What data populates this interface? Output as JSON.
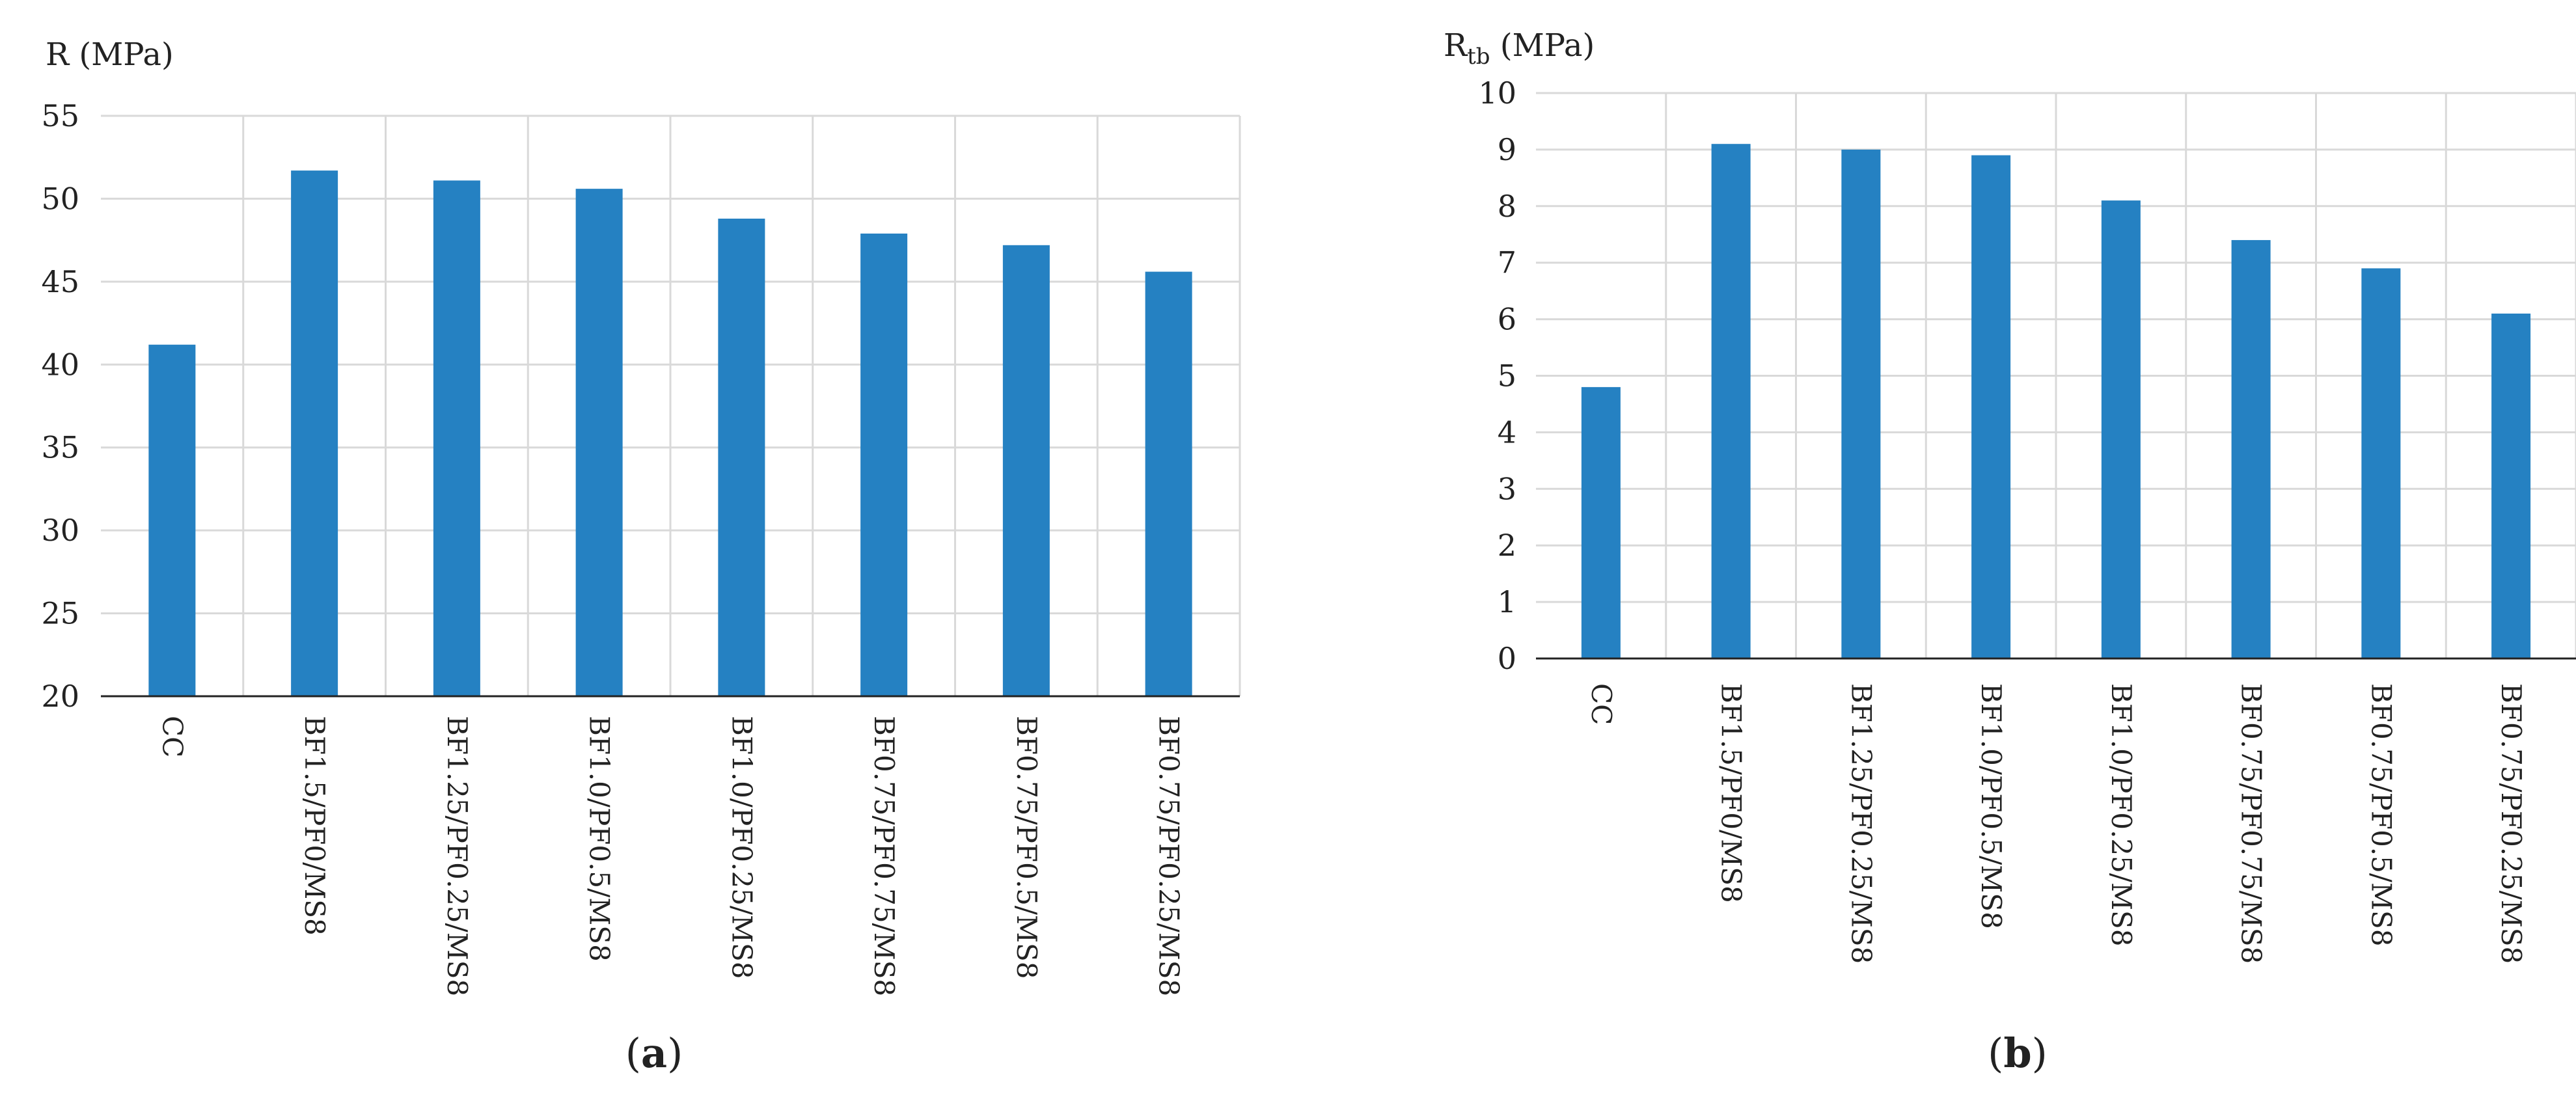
{
  "chart_data": [
    {
      "type": "bar",
      "panel_label": {
        "open": "(",
        "letter": "a",
        "close": ")"
      },
      "title": "",
      "xlabel": "",
      "ylabel": "R (MPa)",
      "ylim": [
        20,
        55
      ],
      "yticks": [
        20,
        25,
        30,
        35,
        40,
        45,
        50,
        55
      ],
      "grid": true,
      "bar_color": "#2581c2",
      "categories": [
        "CC",
        "BF1.5/PF0/MS8",
        "BF1.25/PF0.25/MS8",
        "BF1.0/PF0.5/MS8",
        "BF1.0/PF0.25/MS8",
        "BF0.75/PF0.75/MS8",
        "BF0.75/PF0.5/MS8",
        "BF0.75/PF0.25/MS8"
      ],
      "values": [
        41.2,
        51.7,
        51.1,
        50.6,
        48.8,
        47.9,
        47.2,
        45.6
      ]
    },
    {
      "type": "bar",
      "panel_label": {
        "open": "(",
        "letter": "b",
        "close": ")"
      },
      "title": "",
      "xlabel": "",
      "ylabel_main": "R",
      "ylabel_sub": "tb",
      "ylabel_unit": " (MPa)",
      "ylim": [
        0,
        10
      ],
      "yticks": [
        0,
        1,
        2,
        3,
        4,
        5,
        6,
        7,
        8,
        9,
        10
      ],
      "grid": true,
      "bar_color": "#2581c2",
      "categories": [
        "CC",
        "BF1.5/PF0/MS8",
        "BF1.25/PF0.25/MS8",
        "BF1.0/PF0.5/MS8",
        "BF1.0/PF0.25/MS8",
        "BF0.75/PF0.75/MS8",
        "BF0.75/PF0.5/MS8",
        "BF0.75/PF0.25/MS8"
      ],
      "values": [
        4.8,
        9.1,
        9.0,
        8.9,
        8.1,
        7.4,
        6.9,
        6.1
      ]
    }
  ]
}
